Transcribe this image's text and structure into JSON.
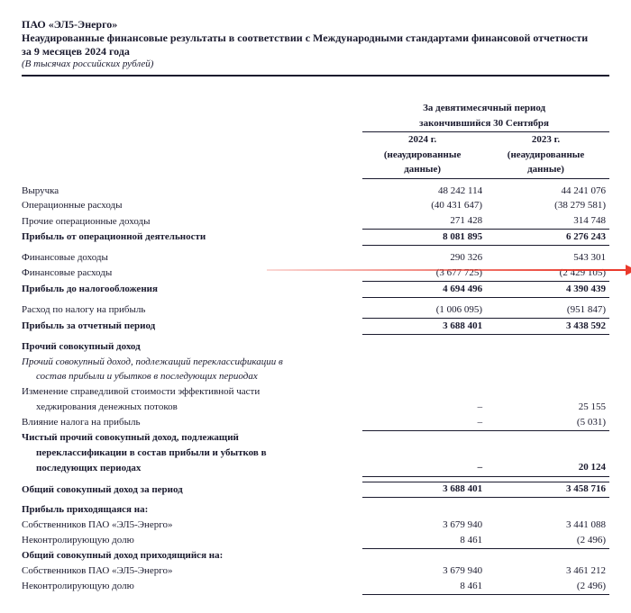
{
  "header": {
    "company": "ПАО «ЭЛ5-Энерго»",
    "title_l1": "Неаудированные финансовые результаты в соответствии с Международными стандартами финансовой отчетности",
    "title_l2": "за 9 месяцев 2024 года",
    "note": "(В тысячах российских рублей)"
  },
  "period": {
    "caption_l1": "За девятимесячный период",
    "caption_l2": "закончившийся 30 Сентября",
    "y1": "2024 г.",
    "y1_sub1": "(неаудированные",
    "y1_sub2": "данные)",
    "y2": "2023 г.",
    "y2_sub1": "(неаудированные",
    "y2_sub2": "данные)"
  },
  "rows": {
    "revenue": {
      "label": "Выручка",
      "v1": "48 242 114",
      "v2": "44 241 076"
    },
    "opex": {
      "label": "Операционные расходы",
      "v1": "(40 431 647)",
      "v2": "(38 279 581)"
    },
    "other_op_inc": {
      "label": "Прочие операционные доходы",
      "v1": "271 428",
      "v2": "314 748"
    },
    "op_profit": {
      "label": "Прибыль от операционной деятельности",
      "v1": "8 081 895",
      "v2": "6 276 243"
    },
    "fin_income": {
      "label": "Финансовые доходы",
      "v1": "290 326",
      "v2": "543 301"
    },
    "fin_expense": {
      "label": "Финансовые расходы",
      "v1": "(3 677 725)",
      "v2": "(2 429 105)"
    },
    "pbt": {
      "label": "Прибыль до налогообложения",
      "v1": "4 694 496",
      "v2": "4 390 439"
    },
    "tax": {
      "label": "Расход по налогу на прибыль",
      "v1": "(1 006 095)",
      "v2": "(951 847)"
    },
    "net_profit": {
      "label": "Прибыль за отчетный период",
      "v1": "3 688 401",
      "v2": "3 438 592"
    },
    "oci_head": {
      "label": "Прочий совокупный доход"
    },
    "oci_sub_l1": {
      "label": "Прочий совокупный доход, подлежащий переклассификации в"
    },
    "oci_sub_l2": {
      "label": "состав прибыли и убытков в последующих периодах"
    },
    "hedge_l1": {
      "label": "Изменение справедливой стоимости эффективной части"
    },
    "hedge_l2": {
      "label": "хеджирования денежных потоков",
      "v1": "–",
      "v2": "25 155"
    },
    "tax_effect": {
      "label": "Влияние налога на прибыль",
      "v1": "–",
      "v2": "(5 031)"
    },
    "net_oci_l1": {
      "label": "Чистый прочий совокупный доход, подлежащий"
    },
    "net_oci_l2": {
      "label": "переклассификации в состав прибыли и убытков в"
    },
    "net_oci_l3": {
      "label": "последующих периодах",
      "v1": "–",
      "v2": "20 124"
    },
    "total_comp": {
      "label": "Общий совокупный доход за период",
      "v1": "3 688 401",
      "v2": "3 458 716"
    },
    "attr_profit": {
      "label": "Прибыль приходящаяся на:"
    },
    "owners1": {
      "label": "Собственников ПАО «ЭЛ5-Энерго»",
      "v1": "3 679 940",
      "v2": "3 441 088"
    },
    "nci1": {
      "label": "Неконтролирующую долю",
      "v1": "8 461",
      "v2": "(2 496)"
    },
    "attr_comp": {
      "label": "Общий совокупный доход приходящийся на:"
    },
    "owners2": {
      "label": "Собственников ПАО «ЭЛ5-Энерго»",
      "v1": "3 679 940",
      "v2": "3 461 212"
    },
    "nci2": {
      "label": "Неконтролирующую долю",
      "v1": "8 461",
      "v2": "(2 496)"
    }
  },
  "style": {
    "text_color": "#1a1a2e",
    "background": "#ffffff",
    "arrow_color": "#ea3a2c",
    "font_family": "Times New Roman"
  }
}
